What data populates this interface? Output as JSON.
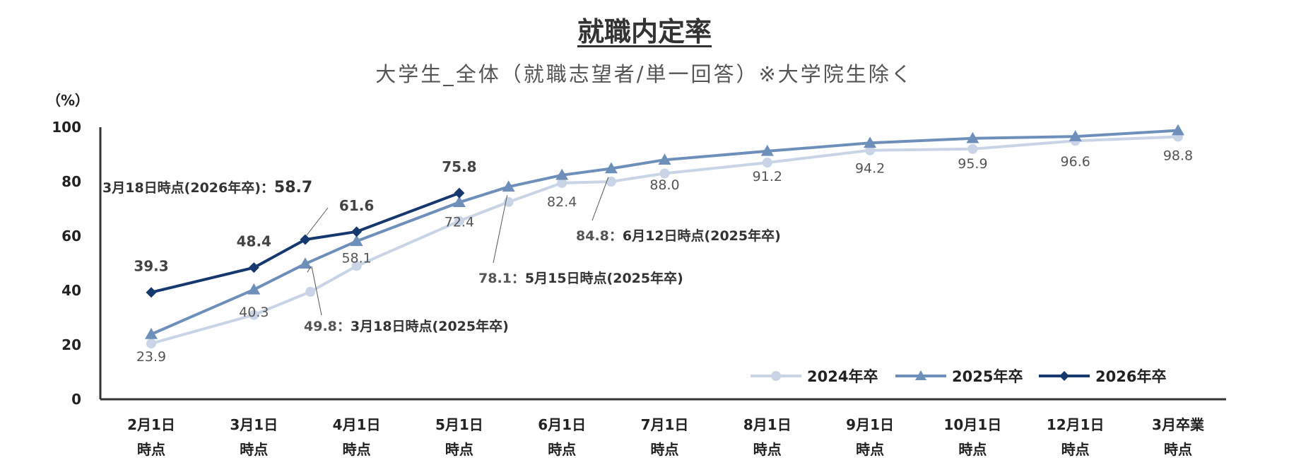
{
  "chart_data": {
    "type": "line",
    "title": "就職内定率",
    "subtitle": "大学生_全体（就職志望者/単一回答）※大学院生除く",
    "y_unit_label": "（%）",
    "ylim": [
      0,
      100
    ],
    "yticks": [
      0,
      20,
      40,
      60,
      80,
      100
    ],
    "grid": false,
    "legend_position": "bottom-right",
    "categories": [
      [
        "2月1日",
        "時点"
      ],
      [
        "3月1日",
        "時点"
      ],
      [
        "4月1日",
        "時点"
      ],
      [
        "5月1日",
        "時点"
      ],
      [
        "6月1日",
        "時点"
      ],
      [
        "7月1日",
        "時点"
      ],
      [
        "8月1日",
        "時点"
      ],
      [
        "9月1日",
        "時点"
      ],
      [
        "10月1日",
        "時点"
      ],
      [
        "12月1日",
        "時点"
      ],
      [
        "3月卒業",
        "時点"
      ]
    ],
    "series": [
      {
        "name": "2024年卒",
        "color": "#c9d5e6",
        "marker": "circle",
        "points": [
          {
            "x": 0,
            "y": 20.5
          },
          {
            "x": 1,
            "y": 31.0
          },
          {
            "x": 1.55,
            "y": 39.5
          },
          {
            "x": 2,
            "y": 49.0
          },
          {
            "x": 3,
            "y": 65.5
          },
          {
            "x": 3.48,
            "y": 72.5
          },
          {
            "x": 4,
            "y": 79.5
          },
          {
            "x": 4.48,
            "y": 80.0
          },
          {
            "x": 5,
            "y": 83.0
          },
          {
            "x": 6,
            "y": 87.0
          },
          {
            "x": 7,
            "y": 91.5
          },
          {
            "x": 8,
            "y": 92.0
          },
          {
            "x": 9,
            "y": 95.0
          },
          {
            "x": 10,
            "y": 96.5
          }
        ]
      },
      {
        "name": "2025年卒",
        "color": "#6f8fbb",
        "marker": "triangle",
        "points": [
          {
            "x": 0,
            "y": 23.9
          },
          {
            "x": 1,
            "y": 40.3
          },
          {
            "x": 1.5,
            "y": 49.8
          },
          {
            "x": 2,
            "y": 58.1
          },
          {
            "x": 3,
            "y": 72.4
          },
          {
            "x": 3.48,
            "y": 78.1
          },
          {
            "x": 4,
            "y": 82.4
          },
          {
            "x": 4.48,
            "y": 84.8
          },
          {
            "x": 5,
            "y": 88.0
          },
          {
            "x": 6,
            "y": 91.2
          },
          {
            "x": 7,
            "y": 94.2
          },
          {
            "x": 8,
            "y": 95.9
          },
          {
            "x": 9,
            "y": 96.6
          },
          {
            "x": 10,
            "y": 98.8
          }
        ]
      },
      {
        "name": "2026年卒",
        "color": "#16386f",
        "marker": "diamond",
        "points": [
          {
            "x": 0,
            "y": 39.3
          },
          {
            "x": 1,
            "y": 48.4
          },
          {
            "x": 1.5,
            "y": 58.7
          },
          {
            "x": 2,
            "y": 61.6
          },
          {
            "x": 3,
            "y": 75.8
          }
        ]
      }
    ],
    "data_labels_2025": [
      {
        "x": 0,
        "text": "23.9"
      },
      {
        "x": 1,
        "text": "40.3"
      },
      {
        "x": 2,
        "text": "58.1"
      },
      {
        "x": 3,
        "text": "72.4"
      },
      {
        "x": 4,
        "text": "82.4"
      },
      {
        "x": 5,
        "text": "88.0"
      },
      {
        "x": 6,
        "text": "91.2"
      },
      {
        "x": 7,
        "text": "94.2"
      },
      {
        "x": 8,
        "text": "95.9"
      },
      {
        "x": 9,
        "text": "96.6"
      },
      {
        "x": 10,
        "text": "98.8"
      }
    ],
    "data_labels_2026": [
      {
        "x": 0,
        "text": "39.3"
      },
      {
        "x": 1,
        "text": "48.4"
      },
      {
        "x": 2,
        "text": "61.6"
      },
      {
        "x": 3,
        "text": "75.8"
      }
    ],
    "annotations": [
      {
        "value": "58.7",
        "label": "3月18日時点(2026年卒)："
      },
      {
        "value": "49.8：",
        "label": "3月18日時点(2025年卒)"
      },
      {
        "value": "78.1：",
        "label": "5月15日時点(2025年卒)"
      },
      {
        "value": "84.8：",
        "label": "6月12日時点(2025年卒)"
      }
    ]
  }
}
